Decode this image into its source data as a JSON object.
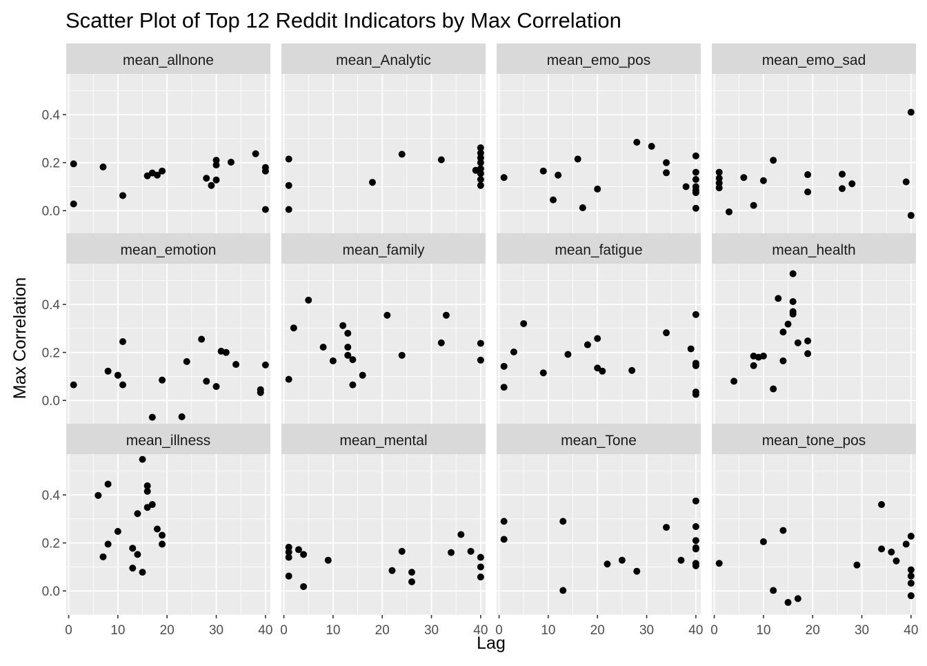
{
  "chart_data": {
    "type": "scatter",
    "title": "Scatter Plot of Top 12 Reddit Indicators by Max Correlation",
    "xlabel": "Lag",
    "ylabel": "Max Correlation",
    "xlim": [
      -0.5,
      41
    ],
    "ylim": [
      -0.1,
      0.57
    ],
    "x_ticks": [
      0,
      10,
      20,
      30,
      40
    ],
    "y_ticks": [
      0.0,
      0.2,
      0.4
    ],
    "y_tick_labels": [
      "0.0",
      "0.2",
      "0.4"
    ],
    "grid": true,
    "facets": [
      {
        "name": "mean_allnone",
        "x": [
          1,
          1,
          7,
          11,
          16,
          17,
          18,
          19,
          28,
          29,
          30,
          30,
          30,
          33,
          38,
          40,
          40,
          40
        ],
        "y": [
          0.195,
          0.028,
          0.182,
          0.063,
          0.145,
          0.157,
          0.148,
          0.165,
          0.135,
          0.105,
          0.21,
          0.19,
          0.128,
          0.202,
          0.237,
          0.18,
          0.165,
          0.005
        ]
      },
      {
        "name": "mean_Analytic",
        "x": [
          1,
          1,
          1,
          18,
          24,
          32,
          39,
          40,
          40,
          40,
          40,
          40,
          40,
          40,
          40
        ],
        "y": [
          0.215,
          0.105,
          0.005,
          0.118,
          0.235,
          0.212,
          0.168,
          0.262,
          0.24,
          0.22,
          0.2,
          0.175,
          0.155,
          0.13,
          0.105
        ]
      },
      {
        "name": "mean_emo_pos",
        "x": [
          1,
          9,
          11,
          12,
          16,
          17,
          20,
          28,
          31,
          34,
          34,
          38,
          40,
          40,
          40,
          40,
          40,
          40,
          40
        ],
        "y": [
          0.138,
          0.165,
          0.045,
          0.148,
          0.215,
          0.012,
          0.09,
          0.285,
          0.268,
          0.2,
          0.158,
          0.1,
          0.228,
          0.16,
          0.13,
          0.1,
          0.085,
          0.075,
          0.01
        ]
      },
      {
        "name": "mean_emo_sad",
        "x": [
          1,
          1,
          1,
          1,
          3,
          6,
          8,
          10,
          12,
          19,
          19,
          26,
          26,
          28,
          39,
          40,
          40
        ],
        "y": [
          0.16,
          0.135,
          0.115,
          0.095,
          -0.005,
          0.138,
          0.022,
          0.125,
          0.21,
          0.15,
          0.078,
          0.152,
          0.092,
          0.112,
          0.12,
          0.41,
          -0.02
        ]
      },
      {
        "name": "mean_emotion",
        "x": [
          1,
          8,
          10,
          11,
          11,
          17,
          19,
          23,
          24,
          27,
          28,
          30,
          31,
          32,
          34,
          39,
          39,
          40
        ],
        "y": [
          0.065,
          0.122,
          0.105,
          0.245,
          0.065,
          -0.07,
          0.085,
          -0.068,
          0.162,
          0.255,
          0.08,
          0.058,
          0.205,
          0.2,
          0.15,
          0.045,
          0.033,
          0.148
        ]
      },
      {
        "name": "mean_family",
        "x": [
          1,
          2,
          5,
          8,
          10,
          12,
          13,
          13,
          13,
          14,
          14,
          16,
          21,
          24,
          32,
          33,
          40,
          40
        ],
        "y": [
          0.088,
          0.302,
          0.418,
          0.222,
          0.165,
          0.312,
          0.28,
          0.222,
          0.188,
          0.17,
          0.065,
          0.105,
          0.355,
          0.188,
          0.24,
          0.355,
          0.238,
          0.168
        ]
      },
      {
        "name": "mean_fatigue",
        "x": [
          1,
          1,
          3,
          5,
          9,
          14,
          18,
          20,
          20,
          21,
          27,
          34,
          39,
          40,
          40,
          40,
          40,
          40
        ],
        "y": [
          0.142,
          0.055,
          0.202,
          0.32,
          0.115,
          0.192,
          0.232,
          0.258,
          0.135,
          0.122,
          0.125,
          0.282,
          0.215,
          0.358,
          0.155,
          0.145,
          0.035,
          0.025
        ]
      },
      {
        "name": "mean_health",
        "x": [
          4,
          8,
          8,
          9,
          10,
          12,
          13,
          14,
          14,
          15,
          16,
          16,
          16,
          16,
          17,
          19,
          19
        ],
        "y": [
          0.08,
          0.185,
          0.145,
          0.18,
          0.185,
          0.048,
          0.425,
          0.285,
          0.165,
          0.318,
          0.528,
          0.412,
          0.37,
          0.36,
          0.24,
          0.248,
          0.195
        ]
      },
      {
        "name": "mean_illness",
        "x": [
          6,
          7,
          8,
          8,
          10,
          13,
          13,
          14,
          14,
          15,
          15,
          16,
          16,
          16,
          17,
          18,
          19,
          19
        ],
        "y": [
          0.398,
          0.142,
          0.445,
          0.195,
          0.248,
          0.178,
          0.095,
          0.322,
          0.152,
          0.078,
          0.548,
          0.438,
          0.415,
          0.348,
          0.36,
          0.258,
          0.232,
          0.195
        ]
      },
      {
        "name": "mean_mental",
        "x": [
          1,
          1,
          1,
          1,
          3,
          4,
          4,
          9,
          22,
          24,
          26,
          26,
          34,
          36,
          38,
          40,
          40,
          40
        ],
        "y": [
          0.182,
          0.162,
          0.14,
          0.062,
          0.172,
          0.152,
          0.018,
          0.128,
          0.085,
          0.165,
          0.078,
          0.038,
          0.16,
          0.235,
          0.165,
          0.14,
          0.1,
          0.058
        ]
      },
      {
        "name": "mean_Tone",
        "x": [
          1,
          1,
          13,
          13,
          22,
          25,
          28,
          34,
          37,
          40,
          40,
          40,
          40,
          40,
          40,
          40
        ],
        "y": [
          0.29,
          0.215,
          0.29,
          0.002,
          0.112,
          0.128,
          0.082,
          0.265,
          0.128,
          0.375,
          0.268,
          0.21,
          0.18,
          0.175,
          0.115,
          0.105
        ]
      },
      {
        "name": "mean_tone_pos",
        "x": [
          1,
          10,
          12,
          14,
          15,
          17,
          29,
          34,
          34,
          36,
          37,
          39,
          40,
          40,
          40,
          40,
          40
        ],
        "y": [
          0.115,
          0.205,
          0.002,
          0.252,
          -0.048,
          -0.032,
          0.108,
          0.36,
          0.175,
          0.162,
          0.125,
          0.195,
          0.228,
          0.088,
          0.062,
          0.032,
          -0.02
        ]
      }
    ]
  }
}
